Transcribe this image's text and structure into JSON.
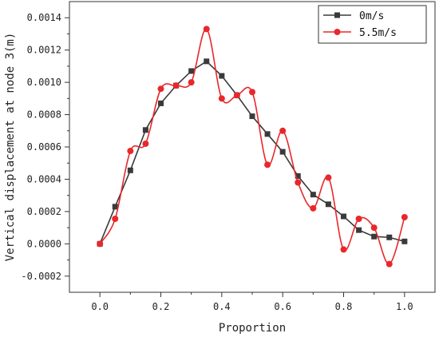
{
  "chart_data": {
    "type": "line",
    "xlabel": "Proportion",
    "ylabel": "Vertical displacement at node 3(m)",
    "xlim": [
      -0.1,
      1.1
    ],
    "ylim": [
      -0.0003,
      0.0015
    ],
    "xticks": [
      "0.0",
      "0.2",
      "0.4",
      "0.6",
      "0.8",
      "1.0"
    ],
    "yticks": [
      "-0.0002",
      "0.0000",
      "0.0002",
      "0.0004",
      "0.0006",
      "0.0008",
      "0.0010",
      "0.0012",
      "0.0014"
    ],
    "legend_position": "top-right",
    "grid": false,
    "series": [
      {
        "name": "0m/s",
        "color": "#3a3a3a",
        "marker": "square",
        "x": [
          0.0,
          0.05,
          0.1,
          0.15,
          0.2,
          0.25,
          0.3,
          0.35,
          0.4,
          0.45,
          0.5,
          0.55,
          0.6,
          0.65,
          0.7,
          0.75,
          0.8,
          0.85,
          0.9,
          0.95,
          1.0
        ],
        "y": [
          0.0,
          0.00023,
          0.000455,
          0.000705,
          0.00087,
          0.00098,
          0.00107,
          0.00113,
          0.00104,
          0.00092,
          0.00079,
          0.00068,
          0.00057,
          0.00042,
          0.000305,
          0.000245,
          0.00017,
          8.5e-05,
          4.5e-05,
          4e-05,
          1.5e-05
        ]
      },
      {
        "name": "5.5m/s",
        "color": "#e8282b",
        "marker": "circle",
        "x": [
          0.0,
          0.05,
          0.1,
          0.15,
          0.2,
          0.25,
          0.3,
          0.35,
          0.4,
          0.45,
          0.5,
          0.55,
          0.6,
          0.65,
          0.7,
          0.75,
          0.8,
          0.85,
          0.9,
          0.95,
          1.0
        ],
        "y": [
          0.0,
          0.000155,
          0.000575,
          0.00062,
          0.00096,
          0.00098,
          0.001,
          0.00133,
          0.0009,
          0.00092,
          0.00094,
          0.00049,
          0.0007,
          0.00038,
          0.00022,
          0.00041,
          -3.5e-05,
          0.000155,
          0.0001,
          -0.000125,
          0.000165
        ]
      }
    ]
  }
}
